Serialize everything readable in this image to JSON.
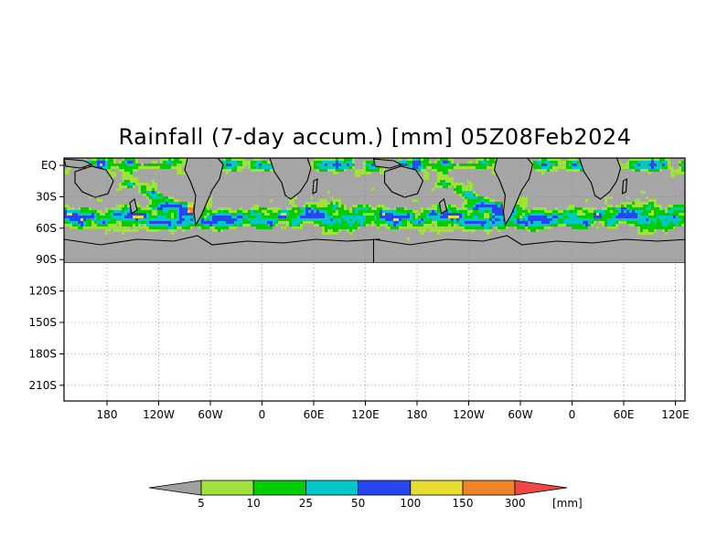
{
  "title": "Rainfall (7-day accum.) [mm] 05Z08Feb2024",
  "map": {
    "lat_labels": [
      "EQ",
      "30S",
      "60S",
      "90S",
      "120S",
      "150S",
      "180S",
      "210S"
    ],
    "lat_values": [
      0,
      -30,
      -60,
      -90,
      -120,
      -150,
      -180,
      -210
    ],
    "lon_labels": [
      "180",
      "120W",
      "60W",
      "0",
      "60E",
      "120E",
      "180",
      "120W",
      "60W",
      "0",
      "60E",
      "120E"
    ],
    "lat_range": [
      -225,
      7
    ],
    "ocean_color": "#a6a6a6",
    "no_data_color": "#ffffff",
    "grid": true
  },
  "colorbar": {
    "thresholds": [
      "5",
      "10",
      "25",
      "50",
      "100",
      "150",
      "300"
    ],
    "unit": "[mm]",
    "colors": [
      "#a0a0a0",
      "#9fe23c",
      "#00cd00",
      "#00c8c8",
      "#2846f0",
      "#e6dc32",
      "#f08228",
      "#f04646"
    ]
  }
}
